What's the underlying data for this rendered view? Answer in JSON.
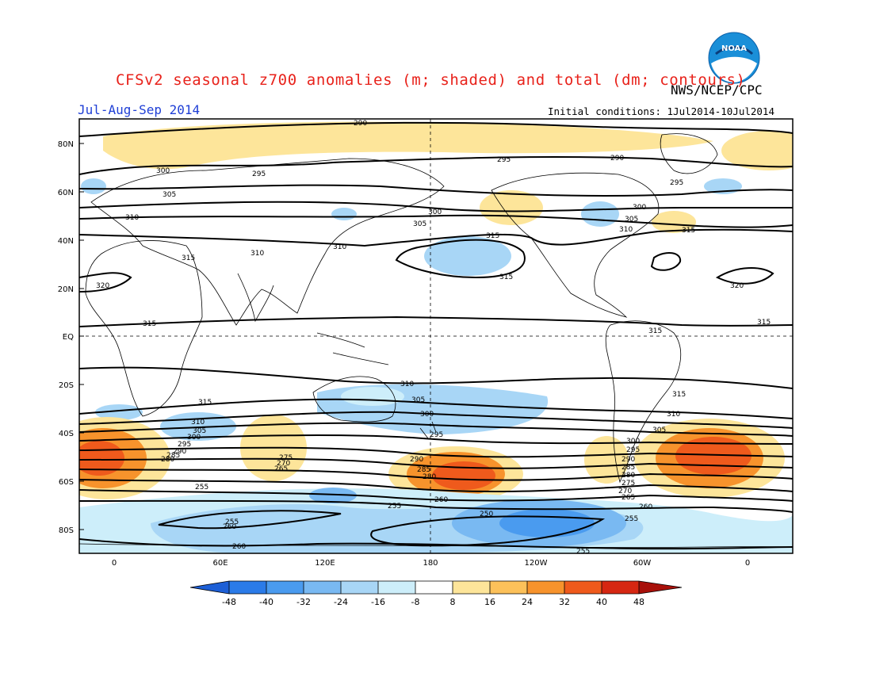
{
  "header": {
    "title": "CFSv2 seasonal z700 anomalies (m; shaded) and total (dm; contours)",
    "agency": "NWS/NCEP/CPC",
    "period": "Jul-Aug-Sep 2014",
    "initial_conditions": "Initial conditions: 1Jul2014-10Jul2014",
    "logo_text": "NOAA"
  },
  "axes": {
    "lat_labels": [
      "80N",
      "60N",
      "40N",
      "20N",
      "EQ",
      "20S",
      "40S",
      "60S",
      "80S"
    ],
    "lon_labels": [
      "0",
      "60E",
      "120E",
      "180",
      "120W",
      "60W",
      "0"
    ]
  },
  "colorbar": {
    "ticks": [
      "-48",
      "-40",
      "-32",
      "-24",
      "-16",
      "-8",
      "8",
      "16",
      "24",
      "32",
      "40",
      "48"
    ],
    "colors": [
      "#1d5fd6",
      "#2b7be8",
      "#4a9bef",
      "#79b9f2",
      "#a8d6f6",
      "#cdeefa",
      "#ffffff",
      "#fde59a",
      "#fcc15a",
      "#f7932c",
      "#ef5a1c",
      "#d62712",
      "#a8100a"
    ]
  },
  "contour_labels": [
    "290",
    "295",
    "300",
    "305",
    "310",
    "315",
    "320",
    "255",
    "260",
    "265",
    "270",
    "275",
    "280",
    "285",
    "250"
  ],
  "colors": {
    "title": "#e8221b",
    "period": "#1f3fd6"
  }
}
